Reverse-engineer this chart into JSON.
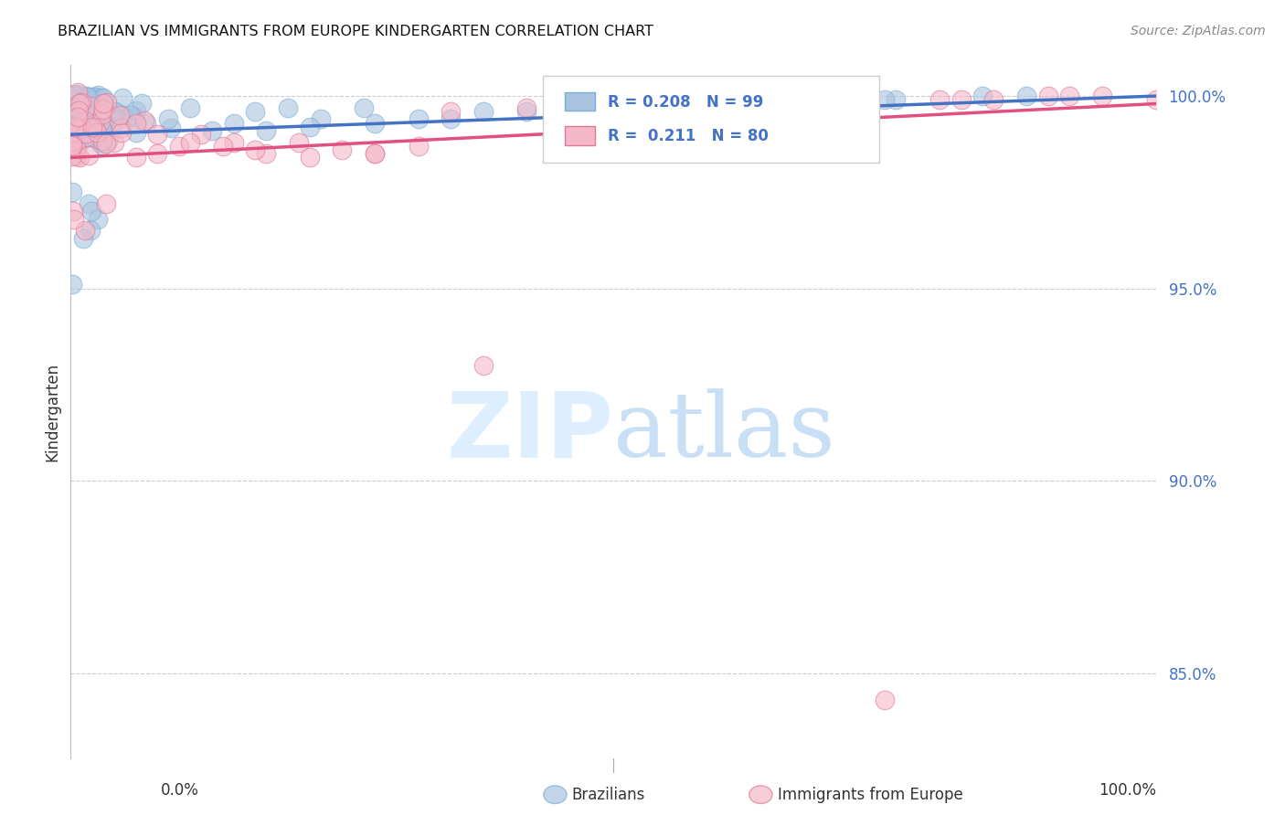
{
  "title": "BRAZILIAN VS IMMIGRANTS FROM EUROPE KINDERGARTEN CORRELATION CHART",
  "source": "Source: ZipAtlas.com",
  "ylabel": "Kindergarten",
  "right_ytick_labels": [
    "100.0%",
    "95.0%",
    "90.0%",
    "85.0%"
  ],
  "right_ytick_values": [
    1.0,
    0.95,
    0.9,
    0.85
  ],
  "legend_label1": "Brazilians",
  "legend_label2": "Immigrants from Europe",
  "r1": 0.208,
  "n1": 99,
  "r2": 0.211,
  "n2": 80,
  "color_blue": "#aac4e0",
  "color_blue_edge": "#7aadd4",
  "color_pink": "#f4b8c8",
  "color_pink_edge": "#e07898",
  "color_blue_line": "#4472c4",
  "color_pink_line": "#e05080",
  "watermark_color": "#ddeeff",
  "bg_color": "#ffffff",
  "ylim_low": 0.828,
  "ylim_high": 1.008,
  "xlim_low": 0.0,
  "xlim_high": 1.0,
  "blue_trend_x0": 0.0,
  "blue_trend_y0": 0.99,
  "blue_trend_x1": 1.0,
  "blue_trend_y1": 1.0,
  "pink_trend_x0": 0.0,
  "pink_trend_y0": 0.984,
  "pink_trend_x1": 1.0,
  "pink_trend_y1": 0.998
}
